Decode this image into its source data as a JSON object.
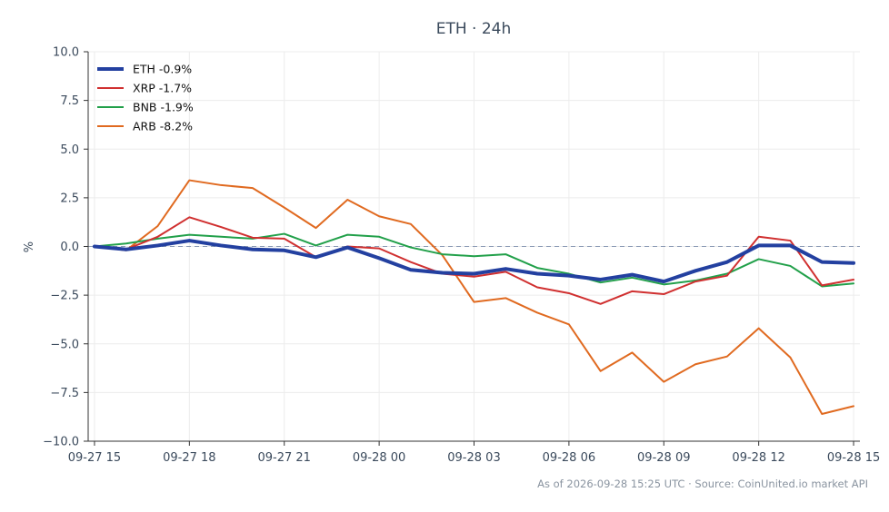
{
  "chart_data": {
    "type": "line",
    "title": "ETH · 24h",
    "xlabel": "",
    "ylabel": "%",
    "ylim": [
      -10,
      10
    ],
    "yticks": [
      10,
      7.5,
      5,
      2.5,
      0,
      -2.5,
      -5,
      -7.5,
      -10
    ],
    "ytick_labels": [
      "10.0",
      "7.5",
      "5.0",
      "2.5",
      "0.0",
      "−2.5",
      "−5.0",
      "−7.5",
      "−10.0"
    ],
    "xlim": [
      -0.2,
      24.2
    ],
    "xticks": [
      0,
      3,
      6,
      9,
      12,
      15,
      18,
      21,
      24
    ],
    "xtick_labels": [
      "09-27 15",
      "09-27 18",
      "09-27 21",
      "09-28 00",
      "09-28 03",
      "09-28 06",
      "09-28 09",
      "09-28 12",
      "09-28 15"
    ],
    "x": [
      0,
      1,
      2,
      3,
      4,
      5,
      6,
      7,
      8,
      9,
      10,
      11,
      12,
      13,
      14,
      15,
      16,
      17,
      18,
      19,
      20,
      21,
      22,
      23,
      24
    ],
    "grid": true,
    "zero_line": true,
    "legend_position": "top-left",
    "series": [
      {
        "name": "ETH -0.9%",
        "color": "#2340a0",
        "values": [
          0.0,
          -0.15,
          0.05,
          0.3,
          0.05,
          -0.15,
          -0.2,
          -0.55,
          -0.05,
          -0.6,
          -1.2,
          -1.35,
          -1.4,
          -1.15,
          -1.4,
          -1.5,
          -1.7,
          -1.45,
          -1.8,
          -1.25,
          -0.8,
          0.05,
          0.05,
          -0.8,
          -0.85
        ]
      },
      {
        "name": "XRP -1.7%",
        "color": "#d03030",
        "values": [
          0.0,
          -0.15,
          0.5,
          1.5,
          1.0,
          0.45,
          0.4,
          -0.55,
          0.0,
          -0.1,
          -0.8,
          -1.4,
          -1.55,
          -1.3,
          -2.1,
          -2.4,
          -2.95,
          -2.3,
          -2.45,
          -1.8,
          -1.5,
          0.5,
          0.3,
          -2.0,
          -1.7
        ]
      },
      {
        "name": "BNB -1.9%",
        "color": "#22a04a",
        "values": [
          0.0,
          0.15,
          0.4,
          0.6,
          0.5,
          0.4,
          0.65,
          0.05,
          0.6,
          0.5,
          -0.05,
          -0.4,
          -0.5,
          -0.4,
          -1.1,
          -1.4,
          -1.85,
          -1.6,
          -1.95,
          -1.75,
          -1.4,
          -0.65,
          -1.0,
          -2.05,
          -1.9
        ]
      },
      {
        "name": "ARB -8.2%",
        "color": "#e06a20",
        "values": [
          0.0,
          -0.2,
          1.05,
          3.4,
          3.15,
          3.0,
          2.0,
          0.95,
          2.4,
          1.55,
          1.15,
          -0.45,
          -2.85,
          -2.65,
          -3.4,
          -4.0,
          -6.4,
          -5.45,
          -6.95,
          -6.05,
          -5.65,
          -4.2,
          -5.7,
          -8.6,
          -8.2
        ]
      }
    ],
    "footer": "As of 2026-09-28 15:25 UTC · Source: CoinUnited.io market API"
  }
}
